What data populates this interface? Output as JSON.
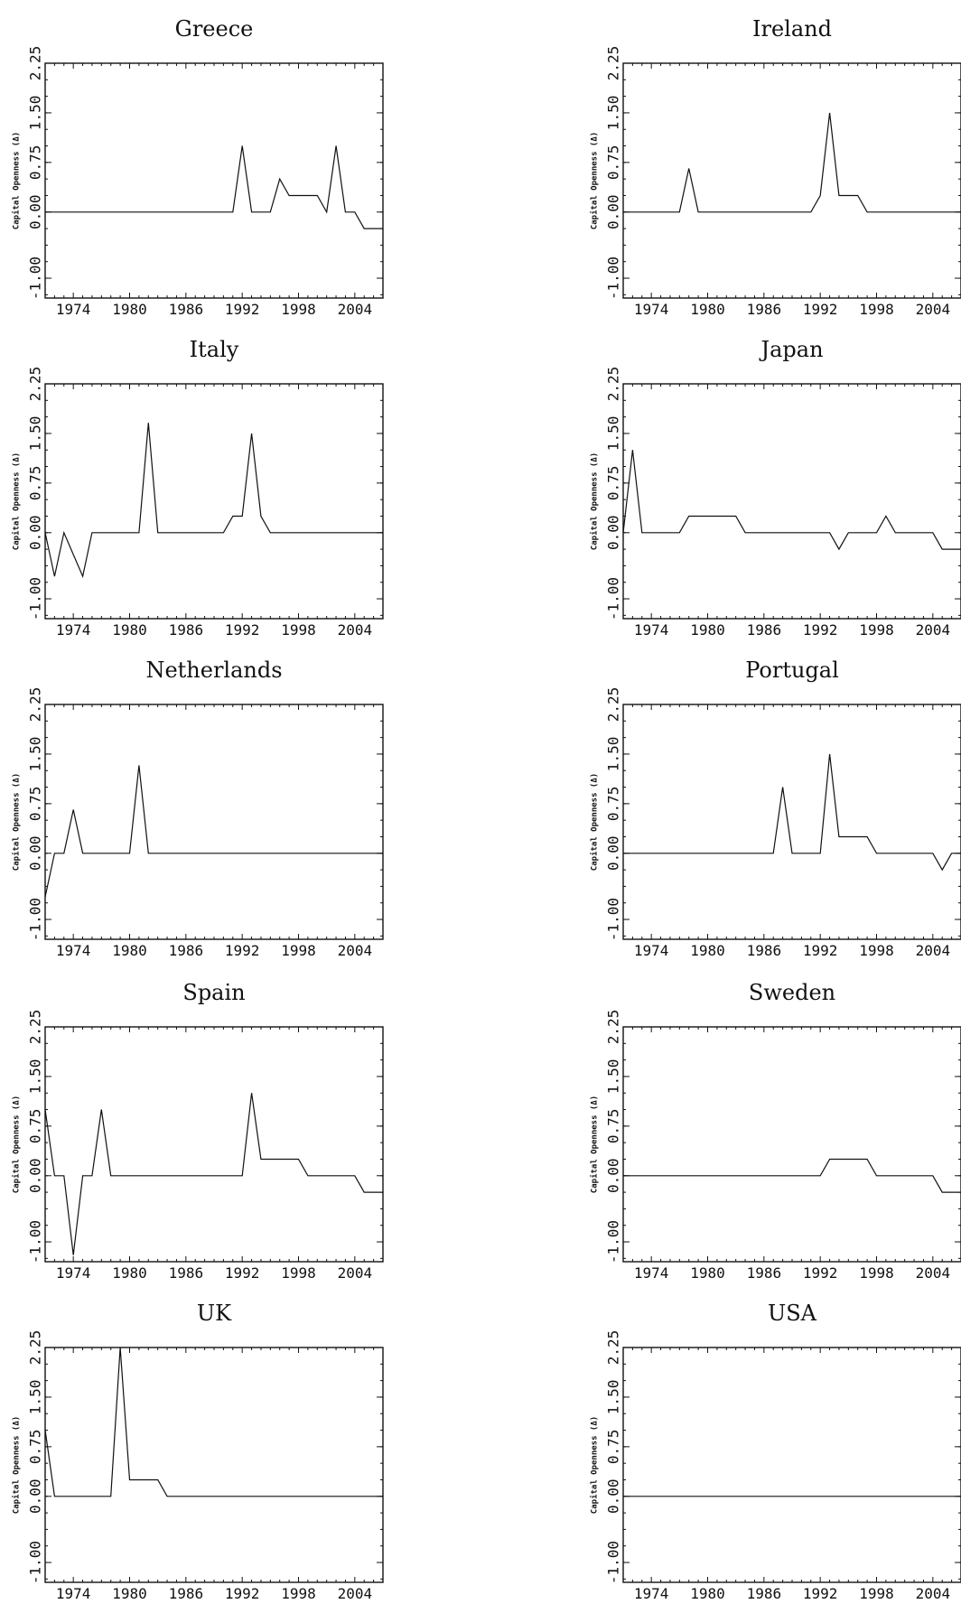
{
  "chart_data": [
    {
      "type": "line",
      "title": "Greece",
      "ylabel": "Capital Openness (Δ)",
      "xlim": [
        1971,
        2007
      ],
      "ylim": [
        -1.3,
        2.25
      ],
      "xticks": [
        "1974",
        "1980",
        "1986",
        "1992",
        "1998",
        "2004"
      ],
      "yticks": [
        "-1.00",
        "0.00",
        "0.75",
        "1.50",
        "2.25"
      ],
      "x": [
        1971,
        1991,
        1992,
        1993,
        1994,
        1995,
        1996,
        1997,
        1998,
        1999,
        2000,
        2001,
        2002,
        2003,
        2004,
        2005,
        2006,
        2007
      ],
      "y": [
        0,
        0,
        1,
        0,
        0,
        0,
        0.5,
        0.25,
        0.25,
        0.25,
        0.25,
        0,
        1,
        0,
        0,
        -0.25,
        -0.25,
        -0.25
      ]
    },
    {
      "type": "line",
      "title": "Ireland",
      "ylabel": "Capital Openness (Δ)",
      "xlim": [
        1971,
        2007
      ],
      "ylim": [
        -1.3,
        2.25
      ],
      "xticks": [
        "1974",
        "1980",
        "1986",
        "1992",
        "1998",
        "2004"
      ],
      "yticks": [
        "-1.00",
        "0.00",
        "0.75",
        "1.50",
        "2.25"
      ],
      "x": [
        1971,
        1977,
        1978,
        1979,
        1991,
        1992,
        1993,
        1994,
        1995,
        1996,
        1997,
        2007
      ],
      "y": [
        0,
        0,
        0.66,
        0,
        0,
        0.25,
        1.5,
        0.25,
        0.25,
        0.25,
        0,
        0
      ]
    },
    {
      "type": "line",
      "title": "Italy",
      "ylabel": "Capital Openness (Δ)",
      "xlim": [
        1971,
        2007
      ],
      "ylim": [
        -1.3,
        2.25
      ],
      "xticks": [
        "1974",
        "1980",
        "1986",
        "1992",
        "1998",
        "2004"
      ],
      "yticks": [
        "-1.00",
        "0.00",
        "0.75",
        "1.50",
        "2.25"
      ],
      "x": [
        1971,
        1972,
        1973,
        1974,
        1975,
        1976,
        1981,
        1982,
        1983,
        1989,
        1990,
        1991,
        1992,
        1993,
        1994,
        1995,
        2007
      ],
      "y": [
        0,
        -0.66,
        0,
        -0.33,
        -0.66,
        0,
        0,
        1.66,
        0,
        0,
        0,
        0.25,
        0.25,
        1.5,
        0.25,
        0,
        0
      ]
    },
    {
      "type": "line",
      "title": "Japan",
      "ylabel": "Capital Openness (Δ)",
      "xlim": [
        1971,
        2007
      ],
      "ylim": [
        -1.3,
        2.25
      ],
      "xticks": [
        "1974",
        "1980",
        "1986",
        "1992",
        "1998",
        "2004"
      ],
      "yticks": [
        "-1.00",
        "0.00",
        "0.75",
        "1.50",
        "2.25"
      ],
      "x": [
        1971,
        1972,
        1973,
        1977,
        1978,
        1983,
        1984,
        1993,
        1994,
        1995,
        1998,
        1999,
        2000,
        2003,
        2004,
        2005,
        2007
      ],
      "y": [
        0,
        1.25,
        0,
        0,
        0.25,
        0.25,
        0,
        0,
        -0.25,
        0,
        0,
        0.25,
        0,
        0,
        0,
        -0.25,
        -0.25
      ]
    },
    {
      "type": "line",
      "title": "Netherlands",
      "ylabel": "Capital Openness (Δ)",
      "xlim": [
        1971,
        2007
      ],
      "ylim": [
        -1.3,
        2.25
      ],
      "xticks": [
        "1974",
        "1980",
        "1986",
        "1992",
        "1998",
        "2004"
      ],
      "yticks": [
        "-1.00",
        "0.00",
        "0.75",
        "1.50",
        "2.25"
      ],
      "x": [
        1971,
        1972,
        1973,
        1974,
        1975,
        1980,
        1981,
        1982,
        2007
      ],
      "y": [
        -0.66,
        0,
        0,
        0.66,
        0,
        0,
        1.33,
        0,
        0
      ]
    },
    {
      "type": "line",
      "title": "Portugal",
      "ylabel": "Capital Openness (Δ)",
      "xlim": [
        1971,
        2007
      ],
      "ylim": [
        -1.3,
        2.25
      ],
      "xticks": [
        "1974",
        "1980",
        "1986",
        "1992",
        "1998",
        "2004"
      ],
      "yticks": [
        "-1.00",
        "0.00",
        "0.75",
        "1.50",
        "2.25"
      ],
      "x": [
        1971,
        1987,
        1988,
        1989,
        1992,
        1993,
        1994,
        1996,
        1997,
        1998,
        2003,
        2004,
        2005,
        2006,
        2007
      ],
      "y": [
        0,
        0,
        1,
        0,
        0,
        1.5,
        0.25,
        0.25,
        0.25,
        0,
        0,
        0,
        -0.25,
        0,
        0
      ]
    },
    {
      "type": "line",
      "title": "Spain",
      "ylabel": "Capital Openness (Δ)",
      "xlim": [
        1971,
        2007
      ],
      "ylim": [
        -1.3,
        2.25
      ],
      "xticks": [
        "1974",
        "1980",
        "1986",
        "1992",
        "1998",
        "2004"
      ],
      "yticks": [
        "-1.00",
        "0.00",
        "0.75",
        "1.50",
        "2.25"
      ],
      "x": [
        1971,
        1972,
        1973,
        1974,
        1975,
        1976,
        1977,
        1978,
        1992,
        1993,
        1994,
        1995,
        1998,
        1999,
        2004,
        2005,
        2006,
        2007
      ],
      "y": [
        1,
        0,
        0,
        -1.2,
        0,
        0,
        1,
        0,
        0,
        1.25,
        0.25,
        0.25,
        0.25,
        0,
        0,
        -0.25,
        -0.25,
        -0.25
      ]
    },
    {
      "type": "line",
      "title": "Sweden",
      "ylabel": "Capital Openness (Δ)",
      "xlim": [
        1971,
        2007
      ],
      "ylim": [
        -1.3,
        2.25
      ],
      "xticks": [
        "1974",
        "1980",
        "1986",
        "1992",
        "1998",
        "2004"
      ],
      "yticks": [
        "-1.00",
        "0.00",
        "0.75",
        "1.50",
        "2.25"
      ],
      "x": [
        1971,
        1992,
        1993,
        1997,
        1998,
        2004,
        2005,
        2007
      ],
      "y": [
        0,
        0,
        0.25,
        0.25,
        0,
        0,
        -0.25,
        -0.25
      ]
    },
    {
      "type": "line",
      "title": "UK",
      "ylabel": "Capital Openness (Δ)",
      "xlim": [
        1971,
        2007
      ],
      "ylim": [
        -1.3,
        2.25
      ],
      "xticks": [
        "1974",
        "1980",
        "1986",
        "1992",
        "1998",
        "2004"
      ],
      "yticks": [
        "-1.00",
        "0.00",
        "0.75",
        "1.50",
        "2.25"
      ],
      "x": [
        1971,
        1972,
        1978,
        1979,
        1980,
        1983,
        1984,
        2007
      ],
      "y": [
        1,
        0,
        0,
        2.25,
        0.25,
        0.25,
        0,
        0
      ]
    },
    {
      "type": "line",
      "title": "USA",
      "ylabel": "Capital Openness (Δ)",
      "xlim": [
        1971,
        2007
      ],
      "ylim": [
        -1.3,
        2.25
      ],
      "xticks": [
        "1974",
        "1980",
        "1986",
        "1992",
        "1998",
        "2004"
      ],
      "yticks": [
        "-1.00",
        "0.00",
        "0.75",
        "1.50",
        "2.25"
      ],
      "x": [
        1971,
        2007
      ],
      "y": [
        0,
        0
      ]
    }
  ]
}
